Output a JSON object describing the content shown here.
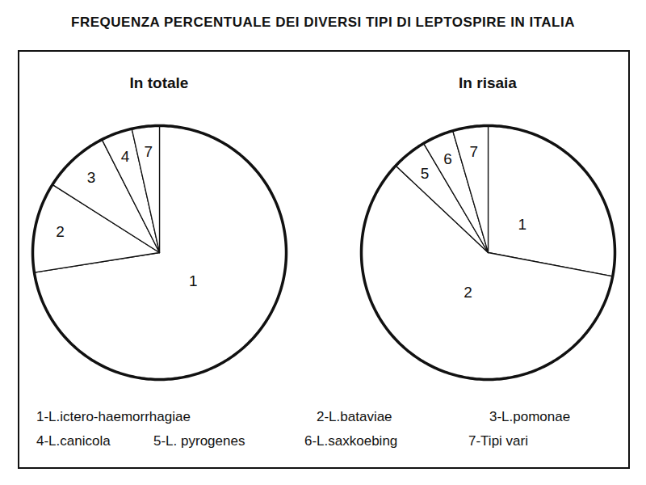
{
  "title": "FREQUENZA PERCENTUALE DEI DIVERSI TIPI DI LEPTOSPIRE IN ITALIA",
  "key": [
    "1-L.ictero-haemorrhagiae",
    "2-L.bataviae",
    "3-L.pomonae",
    "4-L.canicola",
    "5-L. pyrogenes",
    "6-L.saxkoebing",
    "7-Tipi vari"
  ],
  "chart_data": [
    {
      "type": "pie",
      "title": "In totale",
      "categories": [
        "1",
        "2",
        "3",
        "4",
        "7"
      ],
      "values": [
        72.5,
        11.5,
        8.5,
        4,
        3.5
      ],
      "color": "#ffffff"
    },
    {
      "type": "pie",
      "title": "In risaia",
      "categories": [
        "1",
        "2",
        "5",
        "6",
        "7"
      ],
      "values": [
        28,
        59,
        4.5,
        4,
        4.5
      ],
      "color": "#ffffff"
    }
  ]
}
